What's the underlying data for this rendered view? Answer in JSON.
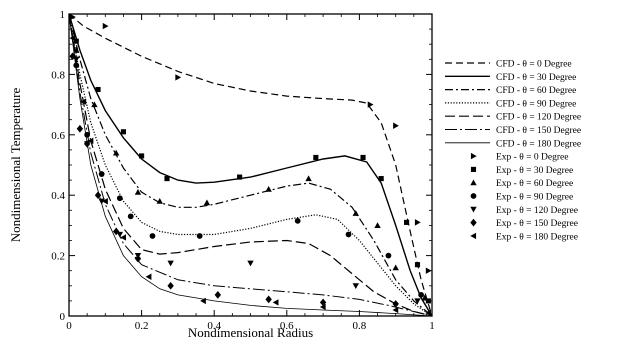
{
  "chart_data": {
    "type": "line",
    "xlabel": "Nondimensional Radius",
    "ylabel": "Nondimensional Temperature",
    "xlim": [
      0,
      1
    ],
    "ylim": [
      0,
      1
    ],
    "x_ticks": [
      "0",
      "0.2",
      "0.4",
      "0.6",
      "0.8",
      "1"
    ],
    "y_ticks": [
      "0",
      "0.2",
      "0.4",
      "0.6",
      "0.8",
      "1"
    ],
    "grid": false,
    "legend_position": "right",
    "series": [
      {
        "name": "CFD - θ = 0 Degree",
        "kind": "line",
        "dash": "dashed",
        "x": [
          0,
          0.04,
          0.1,
          0.2,
          0.3,
          0.4,
          0.5,
          0.6,
          0.7,
          0.78,
          0.82,
          0.86,
          0.9,
          0.94,
          0.97,
          1.0
        ],
        "y": [
          1.0,
          0.96,
          0.92,
          0.86,
          0.81,
          0.77,
          0.745,
          0.728,
          0.72,
          0.715,
          0.705,
          0.64,
          0.5,
          0.28,
          0.12,
          0.0
        ]
      },
      {
        "name": "CFD - θ = 30 Degree",
        "kind": "line",
        "dash": "solid",
        "x": [
          0,
          0.03,
          0.06,
          0.1,
          0.15,
          0.2,
          0.25,
          0.3,
          0.35,
          0.4,
          0.5,
          0.6,
          0.7,
          0.76,
          0.82,
          0.86,
          0.9,
          0.94,
          0.97,
          1.0
        ],
        "y": [
          1.0,
          0.88,
          0.78,
          0.68,
          0.59,
          0.52,
          0.475,
          0.45,
          0.44,
          0.443,
          0.46,
          0.49,
          0.52,
          0.53,
          0.51,
          0.44,
          0.3,
          0.15,
          0.06,
          0.0
        ]
      },
      {
        "name": "CFD - θ = 60 Degree",
        "kind": "line",
        "dash": "dashdot",
        "x": [
          0,
          0.03,
          0.06,
          0.1,
          0.15,
          0.2,
          0.25,
          0.3,
          0.35,
          0.4,
          0.5,
          0.6,
          0.66,
          0.72,
          0.78,
          0.84,
          0.9,
          0.95,
          1.0
        ],
        "y": [
          1.0,
          0.85,
          0.72,
          0.6,
          0.49,
          0.41,
          0.375,
          0.36,
          0.36,
          0.37,
          0.4,
          0.43,
          0.44,
          0.42,
          0.36,
          0.25,
          0.12,
          0.05,
          0.0
        ]
      },
      {
        "name": "CFD - θ = 90 Degree",
        "kind": "line",
        "dash": "dotted",
        "x": [
          0,
          0.03,
          0.06,
          0.1,
          0.15,
          0.2,
          0.25,
          0.3,
          0.4,
          0.5,
          0.6,
          0.68,
          0.74,
          0.8,
          0.86,
          0.9,
          0.95,
          1.0
        ],
        "y": [
          1.0,
          0.8,
          0.64,
          0.5,
          0.38,
          0.31,
          0.28,
          0.27,
          0.27,
          0.29,
          0.32,
          0.335,
          0.32,
          0.25,
          0.16,
          0.1,
          0.04,
          0.0
        ]
      },
      {
        "name": "CFD - θ = 120 Degree",
        "kind": "line",
        "dash": "longdash",
        "x": [
          0,
          0.03,
          0.06,
          0.1,
          0.15,
          0.2,
          0.25,
          0.3,
          0.4,
          0.5,
          0.6,
          0.66,
          0.72,
          0.78,
          0.84,
          0.9,
          0.95,
          1.0
        ],
        "y": [
          1.0,
          0.77,
          0.58,
          0.42,
          0.29,
          0.22,
          0.205,
          0.21,
          0.23,
          0.245,
          0.25,
          0.24,
          0.2,
          0.14,
          0.08,
          0.04,
          0.015,
          0.0
        ]
      },
      {
        "name": "CFD - θ = 150 Degree",
        "kind": "line",
        "dash": "dashdot-long",
        "x": [
          0,
          0.03,
          0.06,
          0.1,
          0.15,
          0.2,
          0.3,
          0.4,
          0.5,
          0.6,
          0.7,
          0.8,
          0.88,
          0.95,
          1.0
        ],
        "y": [
          1.0,
          0.74,
          0.54,
          0.37,
          0.24,
          0.17,
          0.12,
          0.1,
          0.09,
          0.08,
          0.07,
          0.055,
          0.035,
          0.015,
          0.0
        ]
      },
      {
        "name": "CFD - θ = 180 Degree",
        "kind": "line",
        "dash": "thin",
        "x": [
          0,
          0.03,
          0.06,
          0.1,
          0.15,
          0.2,
          0.25,
          0.3,
          0.4,
          0.5,
          0.6,
          0.7,
          0.8,
          0.9,
          1.0
        ],
        "y": [
          1.0,
          0.72,
          0.5,
          0.33,
          0.2,
          0.13,
          0.09,
          0.07,
          0.05,
          0.035,
          0.025,
          0.02,
          0.015,
          0.008,
          0.0
        ]
      },
      {
        "name": "Exp - θ = 0 Degree",
        "kind": "marker",
        "marker": "triangle-right",
        "x": [
          0.01,
          0.1,
          0.3,
          0.83,
          0.9,
          0.96,
          0.99
        ],
        "y": [
          0.99,
          0.96,
          0.79,
          0.7,
          0.63,
          0.31,
          0.15
        ]
      },
      {
        "name": "Exp - θ = 30 Degree",
        "kind": "marker",
        "marker": "square",
        "x": [
          0.02,
          0.08,
          0.15,
          0.2,
          0.27,
          0.47,
          0.68,
          0.81,
          0.86,
          0.93,
          0.96,
          0.99
        ],
        "y": [
          0.91,
          0.75,
          0.61,
          0.53,
          0.455,
          0.46,
          0.525,
          0.525,
          0.455,
          0.31,
          0.17,
          0.05
        ]
      },
      {
        "name": "Exp - θ = 60 Degree",
        "kind": "marker",
        "marker": "triangle-up",
        "x": [
          0.02,
          0.07,
          0.13,
          0.19,
          0.25,
          0.38,
          0.55,
          0.66,
          0.79,
          0.85,
          0.9,
          0.98
        ],
        "y": [
          0.88,
          0.7,
          0.54,
          0.41,
          0.38,
          0.375,
          0.42,
          0.455,
          0.34,
          0.3,
          0.16,
          0.06
        ]
      },
      {
        "name": "Exp - θ = 90 Degree",
        "kind": "marker",
        "marker": "circle",
        "x": [
          0.02,
          0.05,
          0.09,
          0.14,
          0.17,
          0.23,
          0.36,
          0.63,
          0.77,
          0.88,
          0.97
        ],
        "y": [
          0.83,
          0.6,
          0.47,
          0.39,
          0.33,
          0.265,
          0.265,
          0.315,
          0.27,
          0.2,
          0.07
        ]
      },
      {
        "name": "Exp - θ = 120 Degree",
        "kind": "marker",
        "marker": "triangle-down",
        "x": [
          0.02,
          0.05,
          0.09,
          0.14,
          0.19,
          0.28,
          0.5,
          0.79,
          0.96
        ],
        "y": [
          0.85,
          0.57,
          0.38,
          0.27,
          0.2,
          0.175,
          0.175,
          0.1,
          0.05
        ]
      },
      {
        "name": "Exp - θ = 150 Degree",
        "kind": "marker",
        "marker": "diamond",
        "x": [
          0.01,
          0.03,
          0.05,
          0.08,
          0.13,
          0.19,
          0.28,
          0.41,
          0.55,
          0.7,
          0.9
        ],
        "y": [
          0.86,
          0.62,
          0.57,
          0.4,
          0.28,
          0.19,
          0.1,
          0.07,
          0.055,
          0.045,
          0.04
        ]
      },
      {
        "name": "Exp - θ = 180 Degree",
        "kind": "marker",
        "marker": "triangle-left",
        "x": [
          0.01,
          0.04,
          0.06,
          0.1,
          0.15,
          0.22,
          0.37,
          0.57,
          0.7,
          0.9,
          0.99
        ],
        "y": [
          0.92,
          0.71,
          0.58,
          0.38,
          0.26,
          0.13,
          0.05,
          0.045,
          0.03,
          0.02,
          0.01
        ]
      }
    ]
  }
}
